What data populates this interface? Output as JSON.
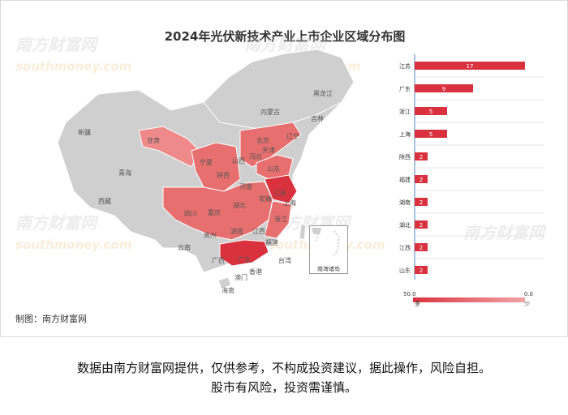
{
  "title": "2024年光伏新技术产业上市企业区域分布图",
  "credit": "制图：南方财富网",
  "footer_lines": [
    "数据由南方财富网提供，仅供参考，不构成投资建议，据此操作，风险自担。",
    "股市有风险，投资需谨慎。"
  ],
  "watermark": {
    "brand": "南方财富网",
    "site": "southmoney.com"
  },
  "map": {
    "province_labels": [
      "新疆",
      "西藏",
      "青海",
      "甘肃",
      "内蒙古",
      "黑龙江",
      "吉林",
      "辽宁",
      "北京",
      "天津",
      "河北",
      "山西",
      "宁夏",
      "陕西",
      "山东",
      "河南",
      "江苏",
      "安徽",
      "上海",
      "四川",
      "重庆",
      "湖北",
      "浙江",
      "湖南",
      "江西",
      "贵州",
      "云南",
      "广西",
      "广东",
      "福建",
      "台湾",
      "香港",
      "澳门",
      "海南"
    ],
    "inset_label": "南海诸岛",
    "colors": {
      "none": "#cfcfcf",
      "low": "#f08a8a",
      "mid": "#e86f6f",
      "high": "#d9323e"
    }
  },
  "legend": {
    "max_label": "50.0",
    "min_label": "0.0",
    "more_label": "多",
    "less_label": "少"
  },
  "chart_data": {
    "type": "bar",
    "title": "2024年光伏新技术产业上市企业区域分布图",
    "categories": [
      "江苏",
      "广东",
      "浙江",
      "上海",
      "陕西",
      "福建",
      "湖南",
      "湖北",
      "江西",
      "山东"
    ],
    "values": [
      17,
      9,
      5,
      5,
      2,
      2,
      2,
      2,
      2,
      2
    ],
    "xlim": [
      0,
      20
    ],
    "bar_color": "#d9323e",
    "grid": true
  }
}
